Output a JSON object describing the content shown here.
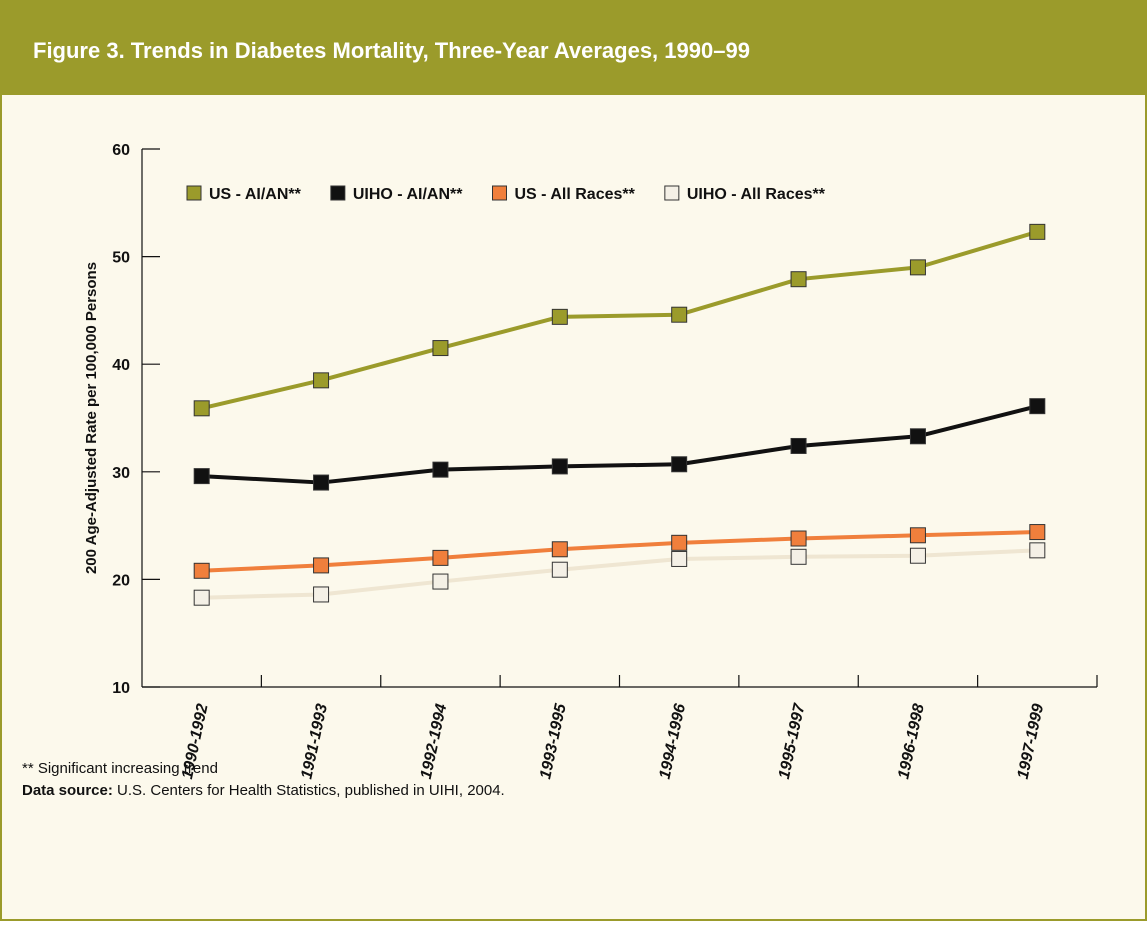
{
  "chart_data": {
    "type": "line",
    "title": "Figure 3. Trends in Diabetes Mortality, Three-Year Averages, 1990–99",
    "y_label": "200 Age-Adjusted Rate per 100,000 Persons",
    "categories": [
      "1990-1992",
      "1991-1993",
      "1992-1994",
      "1993-1995",
      "1994-1996",
      "1995-1997",
      "1996-1998",
      "1997-1999"
    ],
    "series": [
      {
        "name": "US - AI/AN**",
        "color": "#9b9b2b",
        "marker_fill": "#9b9b2b",
        "values": [
          35.9,
          38.5,
          41.5,
          44.4,
          44.6,
          47.9,
          49.0,
          52.3
        ]
      },
      {
        "name": "UIHO - AI/AN**",
        "color": "#111111",
        "marker_fill": "#111111",
        "values": [
          29.6,
          29.0,
          30.2,
          30.5,
          30.7,
          32.4,
          33.3,
          36.1
        ]
      },
      {
        "name": "US - All Races**",
        "color": "#f07f3c",
        "marker_fill": "#f07f3c",
        "values": [
          20.8,
          21.3,
          22.0,
          22.8,
          23.4,
          23.8,
          24.1,
          24.4
        ]
      },
      {
        "name": "UIHO - All Races**",
        "color": "#efe6d2",
        "marker_fill": "#f4f0e6",
        "values": [
          18.3,
          18.6,
          19.8,
          20.9,
          21.9,
          22.1,
          22.2,
          22.7
        ]
      }
    ],
    "ylim": [
      10,
      60
    ],
    "yticks": [
      10,
      20,
      30,
      40,
      50,
      60
    ],
    "legend": "top",
    "footnote": "** Significant increasing trend",
    "source_label": "Data source:",
    "source_text": "U.S. Centers for Health Statistics, published in UIHI, 2004."
  }
}
